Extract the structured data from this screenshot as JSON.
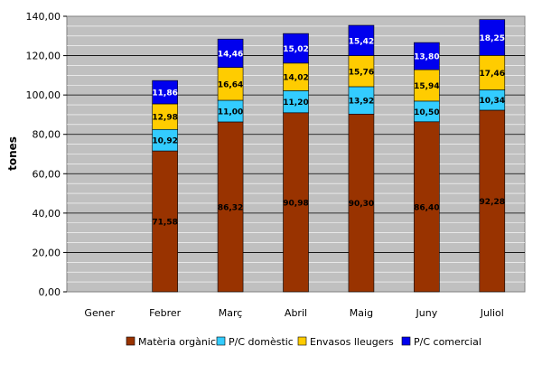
{
  "chart_data": {
    "type": "bar",
    "stacked": true,
    "title": "",
    "xlabel": "",
    "ylabel": "tones",
    "ylim": [
      0,
      140
    ],
    "yticks": [
      "0,00",
      "20,00",
      "40,00",
      "60,00",
      "80,00",
      "100,00",
      "120,00",
      "140,00"
    ],
    "categories": [
      "Gener",
      "Febrer",
      "Març",
      "Abril",
      "Maig",
      "Juny",
      "Juliol"
    ],
    "series": [
      {
        "name": "Matèria orgànica",
        "color": "#993300",
        "label_color": "#000000",
        "values": [
          null,
          71.58,
          86.32,
          90.98,
          90.3,
          86.4,
          92.28
        ],
        "labels": [
          "",
          "71,58",
          "86,32",
          "90,98",
          "90,30",
          "86,40",
          "92,28"
        ]
      },
      {
        "name": "P/C domèstic",
        "color": "#33ccff",
        "label_color": "#000000",
        "values": [
          null,
          10.92,
          11.0,
          11.2,
          13.92,
          10.5,
          10.34
        ],
        "labels": [
          "",
          "10,92",
          "11,00",
          "11,20",
          "13,92",
          "10,50",
          "10,34"
        ]
      },
      {
        "name": "Envasos lleugers",
        "color": "#ffcc00",
        "label_color": "#000000",
        "values": [
          null,
          12.98,
          16.64,
          14.02,
          15.76,
          15.94,
          17.46
        ],
        "labels": [
          "",
          "12,98",
          "16,64",
          "14,02",
          "15,76",
          "15,94",
          "17,46"
        ]
      },
      {
        "name": "P/C comercial",
        "color": "#0000ee",
        "label_color": "#ffffff",
        "values": [
          null,
          11.86,
          14.46,
          15.02,
          15.42,
          13.8,
          18.25
        ],
        "labels": [
          "",
          "11,86",
          "14,46",
          "15,02",
          "15,42",
          "13,80",
          "18,25"
        ]
      }
    ],
    "grid": true,
    "plot_background": "#c0c0c0",
    "legend_position": "bottom"
  }
}
